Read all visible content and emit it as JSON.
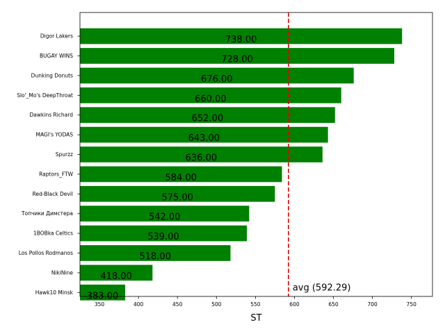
{
  "chart_data": {
    "type": "bar",
    "orientation": "horizontal",
    "categories": [
      "Digor Lakers",
      "BUGAY WINS",
      "Dunking Donuts",
      "Slo'_Mo's DeepThroat",
      "Dawkins Richard",
      "MAGI's YODAS",
      "Spurzz",
      "Raptors_FTW",
      "Red-Black Devil",
      "Топчики Димстера",
      "1BOBka Celtics",
      "Los Pollos Rodmanos",
      "NikiNine",
      "Hawk10 Minsk"
    ],
    "values": [
      738,
      728,
      676,
      660,
      652,
      643,
      636,
      584,
      575,
      542,
      539,
      518,
      418,
      383
    ],
    "value_labels": [
      "738.00",
      "728.00",
      "676.00",
      "660.00",
      "652.00",
      "643.00",
      "636.00",
      "584.00",
      "575.00",
      "542.00",
      "539.00",
      "518.00",
      "418.00",
      "383.00"
    ],
    "bar_color": "#008000",
    "xlabel": "ST",
    "xlim": [
      325,
      777
    ],
    "xticks": [
      350,
      400,
      450,
      500,
      550,
      600,
      650,
      700,
      750
    ],
    "average": {
      "value": 592.29,
      "label": "avg (592.29)",
      "color": "#e00000",
      "style": "dashed"
    },
    "grid": false
  }
}
